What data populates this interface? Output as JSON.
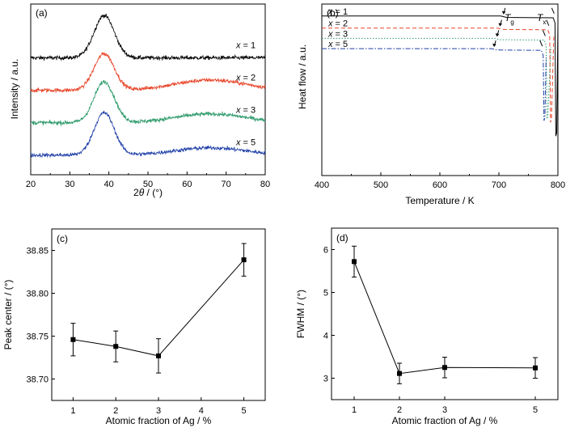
{
  "chart_data": [
    {
      "type": "line",
      "panel_label": "(a)",
      "xlabel_prefix": "2",
      "xlabel_var": "θ",
      "xlabel_suffix": " / (°)",
      "ylabel": "Intensity / a.u.",
      "xlim": [
        20,
        80
      ],
      "xticks": [
        "20",
        "30",
        "40",
        "50",
        "60",
        "70",
        "80"
      ],
      "series": [
        {
          "name": "1",
          "color": "#000000",
          "baseline": 0.7,
          "peak_height": 0.58,
          "halo_height": 0.0
        },
        {
          "name": "2",
          "color": "#e8452a",
          "baseline": 0.5,
          "peak_height": 0.5,
          "halo_height": 0.14
        },
        {
          "name": "3",
          "color": "#2e9a6a",
          "baseline": 0.3,
          "peak_height": 0.56,
          "halo_height": 0.12
        },
        {
          "name": "5",
          "color": "#2040a8",
          "baseline": 0.1,
          "peak_height": 0.58,
          "halo_height": 0.1
        }
      ],
      "peak_center": 38.8,
      "halo_center": 66,
      "legend_var": "x",
      "legend_eq": " = "
    },
    {
      "type": "line",
      "panel_label": "(b)",
      "xlabel": "Temperature / K",
      "ylabel": "Heat flow / a.u.",
      "xlim": [
        400,
        800
      ],
      "xticks": [
        "400",
        "500",
        "600",
        "700",
        "800"
      ],
      "tg_label": "T",
      "tg_sub": "g",
      "tx_label": "T",
      "tx_sub": "x",
      "series": [
        {
          "name": "1",
          "color": "#000000",
          "dash": "",
          "level": 0.93,
          "tg": 708,
          "tx": 795,
          "drop_end": 800
        },
        {
          "name": "2",
          "color": "#e8452a",
          "dash": "5,3",
          "level": 0.86,
          "tg": 702,
          "tx": 786,
          "drop_end": 793
        },
        {
          "name": "3",
          "color": "#2e9a6a",
          "dash": "1.5,2",
          "level": 0.8,
          "tg": 697,
          "tx": 780,
          "drop_end": 788
        },
        {
          "name": "5",
          "color": "#2040a8",
          "dash": "6,2,1.5,2",
          "level": 0.74,
          "tg": 692,
          "tx": 775,
          "drop_end": 780
        }
      ],
      "legend_var": "x",
      "legend_eq": " = "
    },
    {
      "type": "scatter",
      "panel_label": "(c)",
      "xlabel": "Atomic fraction of Ag / %",
      "ylabel": "Peak center / (°)",
      "xlim": [
        0.5,
        5.5
      ],
      "ylim": [
        38.675,
        38.875
      ],
      "xticks": [
        1,
        2,
        3,
        4,
        5
      ],
      "yticks": [
        38.7,
        38.75,
        38.8,
        38.85
      ],
      "x": [
        1,
        2,
        3,
        5
      ],
      "y": [
        38.746,
        38.738,
        38.727,
        38.839
      ],
      "yerr": [
        0.019,
        0.018,
        0.02,
        0.019
      ]
    },
    {
      "type": "scatter",
      "panel_label": "(d)",
      "xlabel": "Atomic fraction of Ag / %",
      "ylabel": "FWHM / (°)",
      "xlim": [
        0.5,
        5.5
      ],
      "ylim": [
        2.5,
        6.5
      ],
      "xticks": [
        1,
        2,
        3,
        5
      ],
      "yticks": [
        3,
        4,
        5,
        6
      ],
      "x": [
        1,
        2,
        3,
        5
      ],
      "y": [
        5.72,
        3.11,
        3.25,
        3.24
      ],
      "yerr": [
        0.36,
        0.24,
        0.24,
        0.24
      ]
    }
  ]
}
